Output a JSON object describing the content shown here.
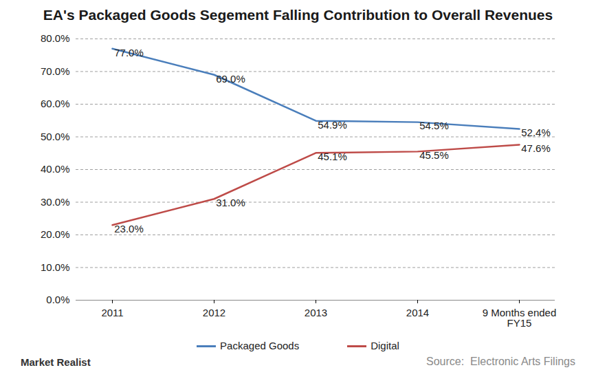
{
  "chart_data": {
    "type": "line",
    "title": "EA's Packaged Goods Segement Falling Contribution to Overall Revenues",
    "categories": [
      "2011",
      "2012",
      "2013",
      "2014",
      "9 Months ended FY15"
    ],
    "series": [
      {
        "name": "Packaged Goods",
        "color": "#4a7ebb",
        "values": [
          77.0,
          69.0,
          54.9,
          54.5,
          52.4
        ],
        "value_labels": [
          "77.0%",
          "69.0%",
          "54.9%",
          "54.5%",
          "52.4%"
        ]
      },
      {
        "name": "Digital",
        "color": "#be4b48",
        "values": [
          23.0,
          31.0,
          45.1,
          45.5,
          47.6
        ],
        "value_labels": [
          "23.0%",
          "31.0%",
          "45.1%",
          "45.5%",
          "47.6%"
        ]
      }
    ],
    "ylim": [
      0,
      80
    ],
    "yticks": [
      {
        "value": 0,
        "label": "0.0%"
      },
      {
        "value": 10,
        "label": "10.0%"
      },
      {
        "value": 20,
        "label": "20.0%"
      },
      {
        "value": 30,
        "label": "30.0%"
      },
      {
        "value": 40,
        "label": "40.0%"
      },
      {
        "value": 50,
        "label": "50.0%"
      },
      {
        "value": 60,
        "label": "60.0%"
      },
      {
        "value": 70,
        "label": "70.0%"
      },
      {
        "value": 80,
        "label": "80.0%"
      }
    ],
    "grid": true,
    "data_labels": true,
    "legend": "bottom",
    "annotations": [
      "Market Realist",
      "Source:  Electronic Arts Filings"
    ]
  }
}
